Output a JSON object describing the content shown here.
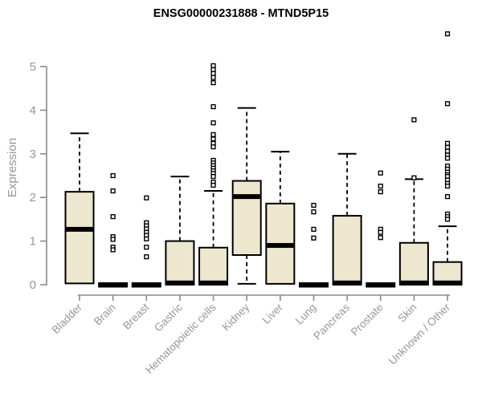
{
  "title": "ENSG00000231888 - MTND5P15",
  "chart_data": {
    "type": "boxplot",
    "title": "ENSG00000231888 - MTND5P15",
    "xlabel": "",
    "ylabel": "Expression",
    "ylim": [
      0,
      5
    ],
    "yticks": [
      "0",
      "1",
      "2",
      "3",
      "4",
      "5"
    ],
    "grid": false,
    "legend": "none",
    "colors": {
      "box_fill": "#ede7cf",
      "box_stroke": "#000000",
      "median": "#000000",
      "axis_line": "#8a8a8a",
      "tick_label": "#979797",
      "title": "#000000",
      "background": "#ffffff"
    },
    "categories": [
      {
        "label": "Bladder",
        "collapsed": false,
        "q1": 0.03,
        "median": 1.27,
        "q3": 2.13,
        "whisker_low": null,
        "whisker_high": 3.47,
        "outliers": []
      },
      {
        "label": "Brain",
        "collapsed": true,
        "q1": 0,
        "median": 0,
        "q3": 0,
        "whisker_low": null,
        "whisker_high": null,
        "outliers": [
          2.5,
          2.15,
          1.56,
          1.1,
          1.04,
          0.86,
          0.8
        ]
      },
      {
        "label": "Breast",
        "collapsed": true,
        "q1": 0,
        "median": 0,
        "q3": 0,
        "whisker_low": null,
        "whisker_high": null,
        "outliers": [
          1.99,
          1.42,
          1.35,
          1.28,
          1.2,
          1.13,
          1.05,
          0.86,
          0.64
        ]
      },
      {
        "label": "Gastric",
        "collapsed": false,
        "q1": 0,
        "median": 0.04,
        "q3": 1.0,
        "whisker_low": null,
        "whisker_high": 2.48,
        "outliers": []
      },
      {
        "label": "Hematopoietic cells",
        "collapsed": false,
        "q1": 0,
        "median": 0.04,
        "q3": 0.85,
        "whisker_low": null,
        "whisker_high": 2.15,
        "outliers": [
          5.02,
          4.93,
          4.84,
          4.75,
          4.63,
          4.08,
          3.71,
          3.44,
          3.34,
          3.24,
          3.16,
          2.85,
          2.79,
          2.73,
          2.67,
          2.61,
          2.55,
          2.48,
          2.35,
          2.28
        ]
      },
      {
        "label": "Kidney",
        "collapsed": false,
        "q1": 0.68,
        "median": 2.02,
        "q3": 2.38,
        "whisker_low": 0.02,
        "whisker_high": 4.05,
        "outliers": []
      },
      {
        "label": "Liver",
        "collapsed": false,
        "q1": 0.02,
        "median": 0.9,
        "q3": 1.86,
        "whisker_low": null,
        "whisker_high": 3.05,
        "outliers": []
      },
      {
        "label": "Lung",
        "collapsed": true,
        "q1": 0,
        "median": 0,
        "q3": 0,
        "whisker_low": null,
        "whisker_high": null,
        "outliers": [
          1.82,
          1.67,
          1.27,
          1.07
        ]
      },
      {
        "label": "Pancreas",
        "collapsed": false,
        "q1": 0,
        "median": 0.04,
        "q3": 1.58,
        "whisker_low": null,
        "whisker_high": 3.0,
        "outliers": []
      },
      {
        "label": "Prostate",
        "collapsed": true,
        "q1": 0,
        "median": 0,
        "q3": 0,
        "whisker_low": null,
        "whisker_high": null,
        "outliers": [
          2.56,
          2.26,
          2.13,
          1.27,
          1.2,
          1.08
        ]
      },
      {
        "label": "Skin",
        "collapsed": false,
        "q1": 0,
        "median": 0.04,
        "q3": 0.96,
        "whisker_low": null,
        "whisker_high": 2.42,
        "outliers": [
          3.78,
          2.45
        ]
      },
      {
        "label": "Unknown / Other",
        "collapsed": false,
        "q1": 0,
        "median": 0.04,
        "q3": 0.52,
        "whisker_low": null,
        "whisker_high": 1.34,
        "outliers": [
          5.75,
          4.15,
          3.24,
          3.15,
          3.06,
          2.97,
          2.9,
          2.72,
          2.65,
          2.58,
          2.52,
          2.48,
          2.4,
          2.32,
          2.26,
          2.02,
          1.62,
          1.56,
          1.5
        ]
      }
    ]
  }
}
